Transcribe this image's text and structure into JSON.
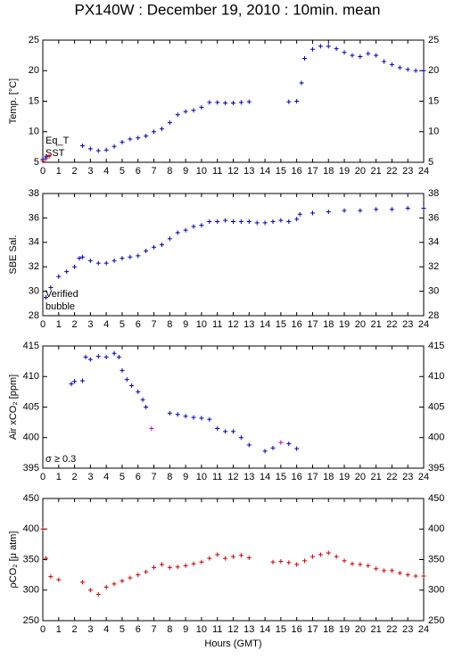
{
  "title": "PX140W : December 19, 2010 : 10min. mean",
  "chart_data": [
    {
      "type": "scatter",
      "y_label": "Temp. [°C]",
      "xlim": [
        0,
        24
      ],
      "xticks": [
        0,
        1,
        2,
        3,
        4,
        5,
        6,
        7,
        8,
        9,
        10,
        11,
        12,
        13,
        14,
        15,
        16,
        17,
        18,
        19,
        20,
        21,
        22,
        23,
        24
      ],
      "ylim": [
        5,
        25
      ],
      "yticks": [
        5,
        10,
        15,
        20,
        25
      ],
      "series": [
        {
          "name": "Eq_T",
          "color": "#d00000",
          "x": [
            0,
            0.2,
            0.4
          ],
          "values": [
            5.2,
            5.6,
            6.0
          ]
        },
        {
          "name": "SST",
          "color": "#0000c0",
          "x": [
            0,
            0.2,
            2.5,
            3,
            3.5,
            4,
            4.5,
            5,
            5.5,
            6,
            6.5,
            7,
            7.5,
            8,
            8.5,
            9,
            9.5,
            10,
            10.5,
            11,
            11.5,
            12,
            12.5,
            13,
            15.5,
            16,
            16.3,
            16.5,
            17,
            17.5,
            18,
            18.5,
            19,
            19.5,
            20,
            20.5,
            21,
            21.5,
            22,
            22.5,
            23,
            23.5,
            24
          ],
          "values": [
            5.5,
            5.9,
            7.7,
            7.2,
            6.9,
            7.0,
            7.6,
            8.3,
            8.8,
            9.0,
            9.3,
            10.0,
            10.5,
            11.5,
            12.8,
            13.3,
            13.5,
            14.0,
            14.8,
            14.8,
            14.7,
            14.7,
            14.8,
            14.9,
            14.9,
            15.0,
            18.0,
            22.0,
            23.5,
            24.0,
            24.0,
            23.6,
            23.0,
            22.5,
            22.3,
            22.8,
            22.5,
            21.5,
            21.0,
            20.5,
            20.2,
            20.0,
            20.0
          ]
        }
      ]
    },
    {
      "type": "scatter",
      "y_label": "SBE Sal.",
      "xlim": [
        0,
        24
      ],
      "xticks": [
        0,
        1,
        2,
        3,
        4,
        5,
        6,
        7,
        8,
        9,
        10,
        11,
        12,
        13,
        14,
        15,
        16,
        17,
        18,
        19,
        20,
        21,
        22,
        23,
        24
      ],
      "ylim": [
        28,
        38
      ],
      "yticks": [
        28,
        30,
        32,
        34,
        36,
        38
      ],
      "series": [
        {
          "name": "Verified",
          "color": "#0000c0",
          "x": [
            0.2,
            0.5,
            1,
            1.5,
            2,
            2.3,
            2.5,
            3,
            3.5,
            4,
            4.5,
            5,
            5.5,
            6,
            6.5,
            7,
            7.5,
            8,
            8.5,
            9,
            9.5,
            10,
            10.5,
            11,
            11.5,
            12,
            12.5,
            13,
            13.5,
            14,
            14.5,
            15,
            15.5,
            16,
            16.2,
            17,
            18,
            19,
            20,
            21,
            22,
            23,
            24
          ],
          "values": [
            29.5,
            30.3,
            31.2,
            31.6,
            32.0,
            32.7,
            32.8,
            32.5,
            32.3,
            32.3,
            32.5,
            32.7,
            32.8,
            32.9,
            33.3,
            33.6,
            33.8,
            34.3,
            34.8,
            35.0,
            35.3,
            35.4,
            35.7,
            35.7,
            35.8,
            35.7,
            35.7,
            35.7,
            35.6,
            35.6,
            35.7,
            35.8,
            35.7,
            35.9,
            36.3,
            36.4,
            36.5,
            36.6,
            36.6,
            36.7,
            36.7,
            36.8,
            36.8
          ]
        },
        {
          "name": "bubble",
          "color": "#c000c0",
          "x": [],
          "values": []
        }
      ]
    },
    {
      "type": "scatter",
      "y_label": "Air xCO₂ [ppm]",
      "xlim": [
        0,
        24
      ],
      "xticks": [
        0,
        1,
        2,
        3,
        4,
        5,
        6,
        7,
        8,
        9,
        10,
        11,
        12,
        13,
        14,
        15,
        16,
        17,
        18,
        19,
        20,
        21,
        22,
        23,
        24
      ],
      "ylim": [
        395,
        415
      ],
      "yticks": [
        395,
        400,
        405,
        410,
        415
      ],
      "series": [
        {
          "name": "σ ≥ 0.3",
          "color": "#c000c0",
          "x": [
            6.85,
            15.0
          ],
          "values": [
            401.5,
            399.2
          ]
        },
        {
          "color": "#0000c0",
          "x": [
            1.8,
            2,
            2.5,
            2.7,
            3,
            3.5,
            4,
            4.5,
            4.8,
            5,
            5.3,
            5.6,
            6,
            6.3,
            6.5,
            8,
            8.5,
            9,
            9.5,
            10,
            10.5,
            11,
            11.5,
            12,
            12.5,
            13,
            14,
            14.5,
            15.5,
            16
          ],
          "values": [
            408.8,
            409.2,
            409.3,
            413.2,
            412.8,
            413.3,
            413.2,
            413.8,
            413.2,
            411,
            409.5,
            408.5,
            407.5,
            406.2,
            405,
            404.0,
            403.8,
            403.5,
            403.3,
            403.2,
            403.0,
            401.5,
            401.0,
            401.0,
            400.0,
            398.8,
            397.8,
            398.3,
            399.0,
            398.2
          ]
        }
      ]
    },
    {
      "type": "scatter",
      "y_label": "ρCO₂ [μ atm]",
      "x_label": "Hours (GMT)",
      "xlim": [
        0,
        24
      ],
      "xticks": [
        0,
        1,
        2,
        3,
        4,
        5,
        6,
        7,
        8,
        9,
        10,
        11,
        12,
        13,
        14,
        15,
        16,
        17,
        18,
        19,
        20,
        21,
        22,
        23,
        24
      ],
      "ylim": [
        250,
        450
      ],
      "yticks": [
        250,
        300,
        350,
        400,
        450
      ],
      "series": [
        {
          "color": "#d00000",
          "x": [
            0,
            0.2,
            0.5,
            1,
            2.5,
            3,
            3.5,
            4,
            4.5,
            5,
            5.5,
            6,
            6.5,
            7,
            7.5,
            8,
            8.5,
            9,
            9.5,
            10,
            10.5,
            11,
            11.5,
            12,
            12.5,
            13,
            14.5,
            15,
            15.5,
            16,
            16.5,
            17,
            17.5,
            18,
            18.5,
            19,
            19.5,
            20,
            20.5,
            21,
            21.5,
            22,
            22.5,
            23,
            23.5,
            24
          ],
          "values": [
            400,
            352,
            322,
            317,
            313,
            300,
            293,
            305,
            310,
            315,
            320,
            325,
            330,
            337,
            342,
            337,
            338,
            340,
            343,
            346,
            352,
            358,
            352,
            355,
            357,
            353,
            346,
            347,
            345,
            342,
            348,
            355,
            358,
            361,
            355,
            348,
            343,
            342,
            340,
            335,
            332,
            332,
            328,
            325,
            323,
            323
          ]
        }
      ]
    }
  ]
}
